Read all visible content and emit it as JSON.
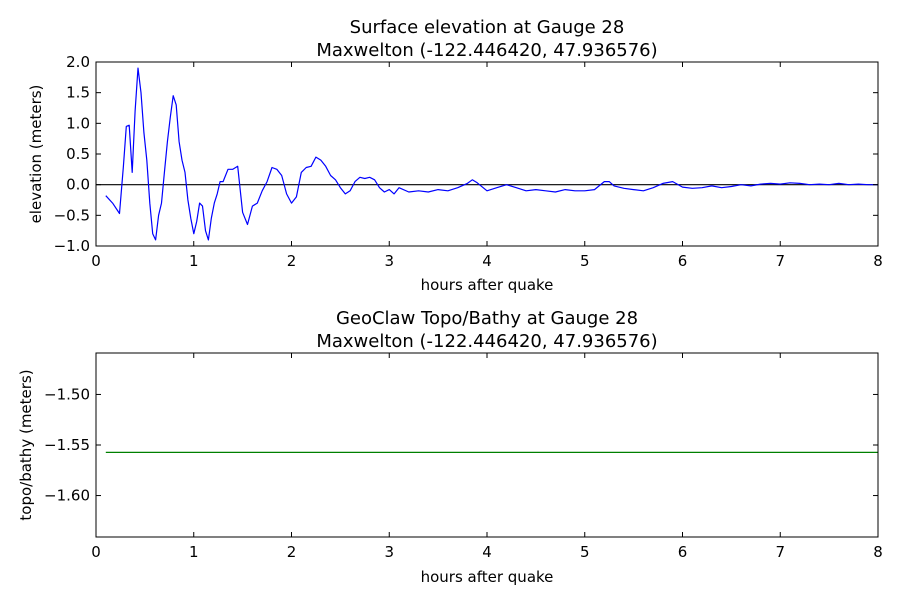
{
  "chart_data": [
    {
      "type": "line",
      "title": "Surface elevation at Gauge 28",
      "subtitle": "Maxwelton  (-122.446420, 47.936576)",
      "xlabel": "hours after quake",
      "ylabel": "elevation (meters)",
      "xlim": [
        0,
        8
      ],
      "ylim": [
        -1.0,
        2.0
      ],
      "xticks": [
        0,
        1,
        2,
        3,
        4,
        5,
        6,
        7,
        8
      ],
      "xtick_labels": [
        "0",
        "1",
        "2",
        "3",
        "4",
        "5",
        "6",
        "7",
        "8"
      ],
      "yticks": [
        -1.0,
        -0.5,
        0.0,
        0.5,
        1.0,
        1.5,
        2.0
      ],
      "ytick_labels": [
        "−1.0",
        "−0.5",
        "0.0",
        "0.5",
        "1.0",
        "1.5",
        "2.0"
      ],
      "grid": false,
      "reference_line": {
        "y": 0.0,
        "color": "#000000"
      },
      "series": [
        {
          "color": "#0000ff",
          "x": [
            0.1,
            0.17,
            0.24,
            0.28,
            0.31,
            0.34,
            0.37,
            0.4,
            0.43,
            0.46,
            0.49,
            0.52,
            0.55,
            0.58,
            0.61,
            0.64,
            0.67,
            0.7,
            0.73,
            0.76,
            0.79,
            0.82,
            0.85,
            0.88,
            0.91,
            0.94,
            0.97,
            1.0,
            1.03,
            1.06,
            1.09,
            1.12,
            1.15,
            1.18,
            1.21,
            1.24,
            1.27,
            1.3,
            1.35,
            1.4,
            1.45,
            1.5,
            1.55,
            1.6,
            1.65,
            1.7,
            1.75,
            1.8,
            1.85,
            1.9,
            1.95,
            2.0,
            2.05,
            2.1,
            2.15,
            2.2,
            2.25,
            2.3,
            2.35,
            2.4,
            2.45,
            2.5,
            2.55,
            2.6,
            2.65,
            2.7,
            2.75,
            2.8,
            2.85,
            2.9,
            2.95,
            3.0,
            3.05,
            3.1,
            3.2,
            3.3,
            3.4,
            3.5,
            3.6,
            3.7,
            3.8,
            3.85,
            3.9,
            4.0,
            4.1,
            4.2,
            4.3,
            4.4,
            4.5,
            4.6,
            4.7,
            4.8,
            4.9,
            5.0,
            5.1,
            5.2,
            5.25,
            5.3,
            5.4,
            5.5,
            5.6,
            5.7,
            5.8,
            5.9,
            6.0,
            6.1,
            6.2,
            6.3,
            6.4,
            6.5,
            6.6,
            6.7,
            6.8,
            6.9,
            7.0,
            7.1,
            7.2,
            7.3,
            7.4,
            7.5,
            7.6,
            7.7,
            7.8,
            7.9,
            8.0
          ],
          "y": [
            -0.18,
            -0.3,
            -0.47,
            0.3,
            0.95,
            0.97,
            0.2,
            1.2,
            1.9,
            1.5,
            0.85,
            0.4,
            -0.3,
            -0.8,
            -0.9,
            -0.5,
            -0.3,
            0.2,
            0.7,
            1.1,
            1.45,
            1.3,
            0.7,
            0.4,
            0.2,
            -0.25,
            -0.55,
            -0.8,
            -0.6,
            -0.3,
            -0.35,
            -0.75,
            -0.9,
            -0.55,
            -0.3,
            -0.15,
            0.05,
            0.05,
            0.25,
            0.25,
            0.3,
            -0.45,
            -0.65,
            -0.35,
            -0.3,
            -0.1,
            0.05,
            0.28,
            0.25,
            0.15,
            -0.15,
            -0.3,
            -0.2,
            0.2,
            0.28,
            0.3,
            0.45,
            0.4,
            0.3,
            0.15,
            0.08,
            -0.05,
            -0.15,
            -0.1,
            0.05,
            0.12,
            0.1,
            0.12,
            0.08,
            -0.05,
            -0.12,
            -0.08,
            -0.15,
            -0.05,
            -0.12,
            -0.1,
            -0.12,
            -0.08,
            -0.1,
            -0.05,
            0.02,
            0.08,
            0.03,
            -0.1,
            -0.05,
            0.0,
            -0.05,
            -0.1,
            -0.08,
            -0.1,
            -0.12,
            -0.08,
            -0.1,
            -0.1,
            -0.08,
            0.05,
            0.05,
            -0.02,
            -0.06,
            -0.08,
            -0.1,
            -0.05,
            0.02,
            0.05,
            -0.04,
            -0.06,
            -0.05,
            -0.02,
            -0.05,
            -0.03,
            0.0,
            -0.02,
            0.01,
            0.02,
            0.01,
            0.03,
            0.02,
            0.0,
            0.01,
            0.0,
            0.02,
            0.0,
            0.01,
            0.0,
            0.0
          ]
        }
      ]
    },
    {
      "type": "line",
      "title": "GeoClaw Topo/Bathy at Gauge 28",
      "subtitle": "Maxwelton  (-122.446420, 47.936576)",
      "xlabel": "hours after quake",
      "ylabel": "topo/bathy (meters)",
      "xlim": [
        0,
        8
      ],
      "ylim": [
        -1.641,
        -1.459
      ],
      "xticks": [
        0,
        1,
        2,
        3,
        4,
        5,
        6,
        7,
        8
      ],
      "xtick_labels": [
        "0",
        "1",
        "2",
        "3",
        "4",
        "5",
        "6",
        "7",
        "8"
      ],
      "yticks": [
        -1.5,
        -1.55,
        -1.6
      ],
      "ytick_labels": [
        "−1.50",
        "−1.55",
        "−1.60"
      ],
      "grid": false,
      "series": [
        {
          "color": "#008000",
          "x": [
            0.1,
            8.0
          ],
          "y": [
            -1.5573,
            -1.5573
          ]
        }
      ]
    }
  ]
}
